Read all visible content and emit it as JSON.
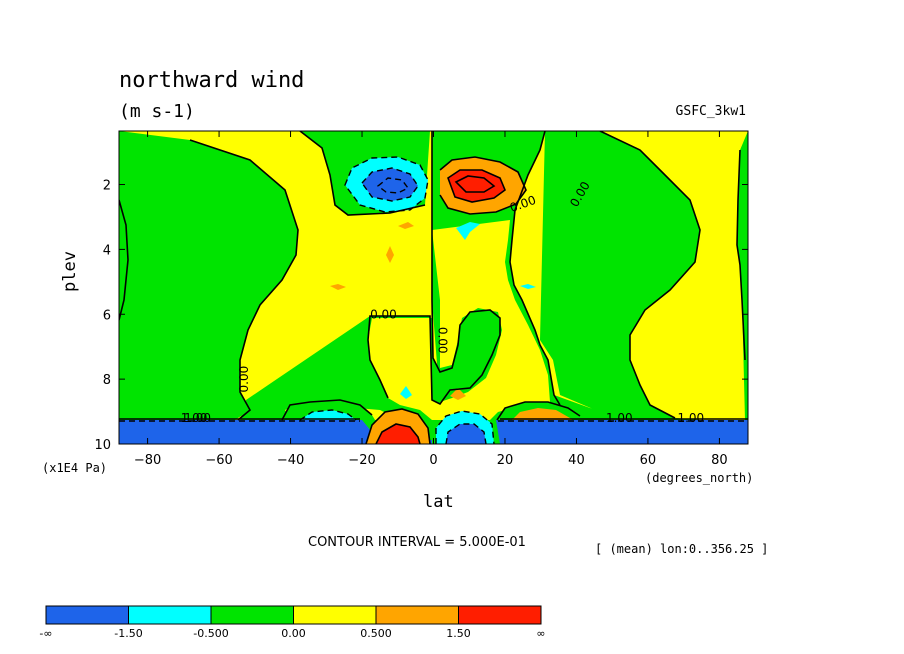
{
  "header": {
    "title": "northward wind",
    "units": "(m s-1)",
    "dataset": "GSFC_3kw1"
  },
  "footer": {
    "contour_interval": "CONTOUR INTERVAL = 5.000E-01",
    "subset": "[ (mean) lon:0..356.25 ]"
  },
  "chart_data": {
    "type": "heatmap",
    "title": "northward wind",
    "subtitle": "(m s-1)",
    "xlabel": "lat",
    "x_units": "(degrees_north)",
    "ylabel": "plev",
    "y_units": "(x1E4 Pa)",
    "xlim": [
      -88,
      88
    ],
    "ylim": [
      10,
      0.35
    ],
    "x_ticks": [
      -80,
      -60,
      -40,
      -20,
      0,
      20,
      40,
      60,
      80
    ],
    "x_tick_labels": [
      "−80",
      "−60",
      "−40",
      "−20",
      "0",
      "20",
      "40",
      "60",
      "80"
    ],
    "y_ticks": [
      2,
      4,
      6,
      8,
      10
    ],
    "y_tick_labels": [
      "2",
      "4",
      "6",
      "8",
      "10"
    ],
    "contour_interval": 0.5,
    "levels": [
      {
        "label": "-∞",
        "value": null
      },
      {
        "label": "-1.50",
        "value": -1.5
      },
      {
        "label": "-0.500",
        "value": -0.5
      },
      {
        "label": "0.00",
        "value": 0
      },
      {
        "label": "0.500",
        "value": 0.5
      },
      {
        "label": "1.50",
        "value": 1.5
      },
      {
        "label": "∞",
        "value": null
      }
    ],
    "colors": [
      "#1e64ea",
      "#00ffff",
      "#00e400",
      "#ffff00",
      "#ffa500",
      "#ff1e00"
    ],
    "contour_labels": [
      "0.00",
      "0.00",
      "0.00",
      "0.00",
      "0.00",
      "1.00",
      "1.00",
      "1.00",
      "1.00"
    ],
    "features": [
      {
        "name": "negative core",
        "lat": -12,
        "plev": 1.8,
        "min_value": -1.5
      },
      {
        "name": "positive core",
        "lat": 12,
        "plev": 1.8,
        "max_value": 1.5
      },
      {
        "name": "near-surface positive core",
        "lat": -10,
        "plev": 9.9,
        "max_value": 1.5
      },
      {
        "name": "near-surface negative core",
        "lat": 8,
        "plev": 9.8,
        "min_value": -1.5
      },
      {
        "name": "surface band",
        "plev_from": 9.25,
        "plev_to": 10,
        "min_value": -1.5
      }
    ]
  },
  "colorbar": {
    "labels": [
      "-∞",
      "-1.50",
      "-0.500",
      "0.00",
      "0.500",
      "1.50",
      "∞"
    ]
  }
}
